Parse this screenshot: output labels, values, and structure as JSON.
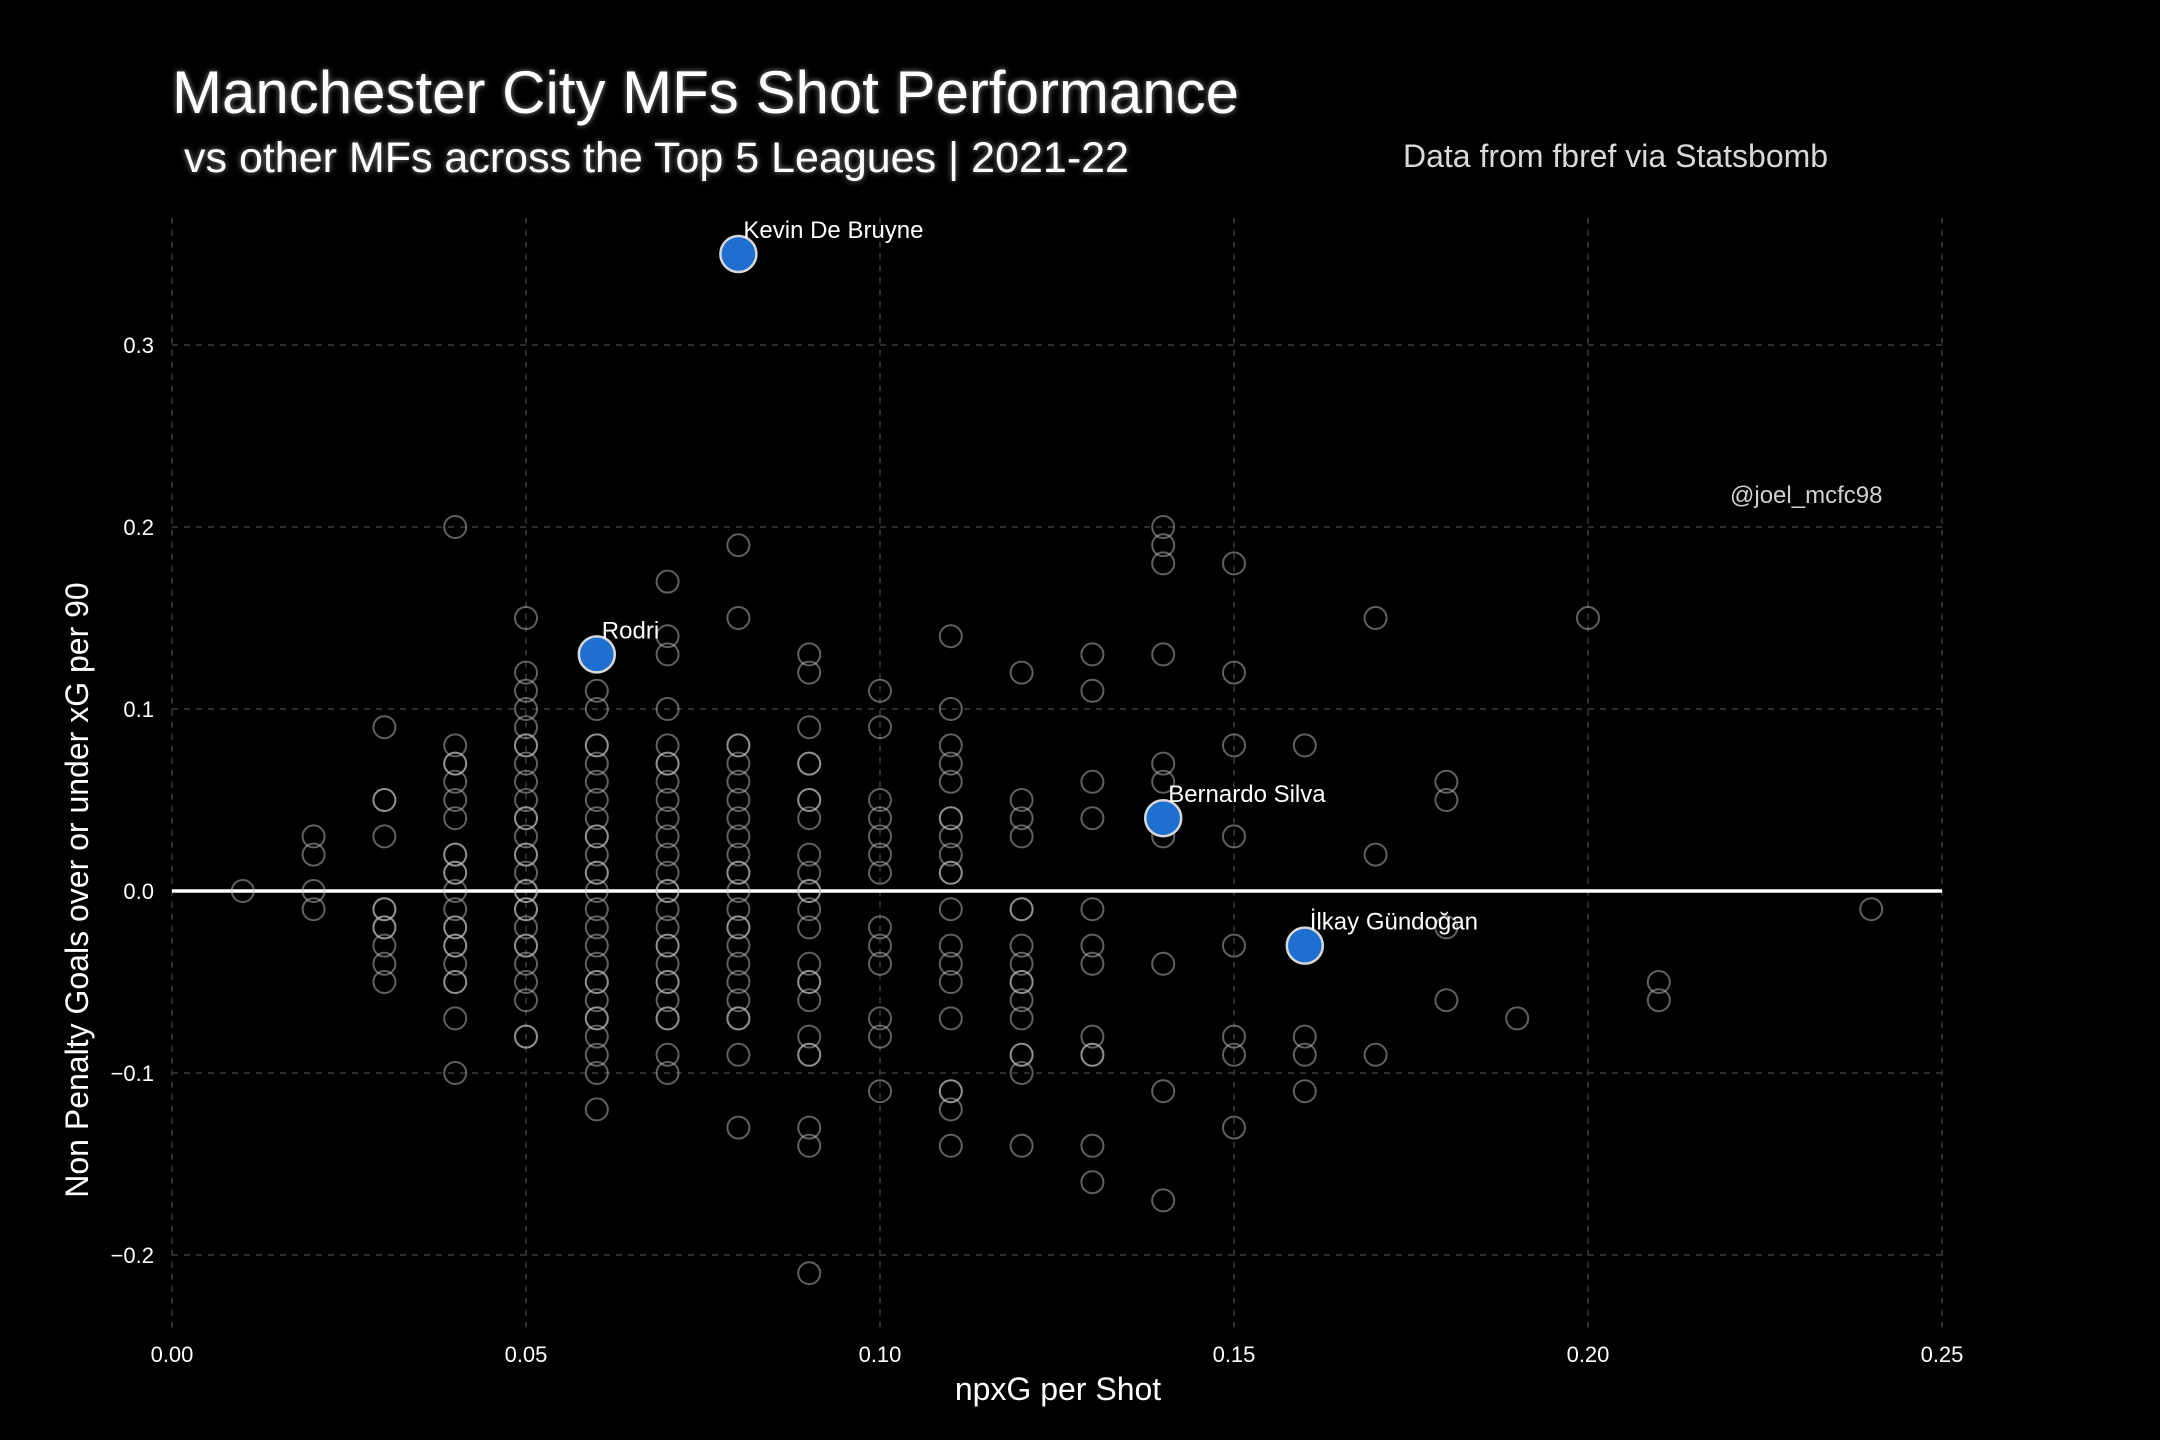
{
  "header": {
    "title": "Manchester City MFs Shot Performance",
    "subtitle": "vs other MFs across the Top 5 Leagues | 2021-22",
    "source": "Data from fbref via Statsbomb"
  },
  "watermark": "@joel_mcfc98",
  "colors": {
    "background": "#000000",
    "highlight": "#1f6fd1",
    "other_points_stroke": "#bfbfbf",
    "zero_line": "#ffffff",
    "grid": "#3a3a3a"
  },
  "chart_data": {
    "type": "scatter",
    "title": "Manchester City MFs Shot Performance",
    "subtitle": "vs other MFs across the Top 5 Leagues | 2021-22",
    "xlabel": "npxG per Shot",
    "ylabel": "Non Penalty Goals over or under xG per 90",
    "xlim": [
      0.0,
      0.25
    ],
    "ylim": [
      -0.24,
      0.37
    ],
    "x_ticks": [
      0.0,
      0.05,
      0.1,
      0.15,
      0.2,
      0.25
    ],
    "x_tick_labels": [
      "0.00",
      "0.05",
      "0.10",
      "0.15",
      "0.20",
      "0.25"
    ],
    "y_ticks": [
      -0.2,
      -0.1,
      0.0,
      0.1,
      0.2,
      0.3
    ],
    "y_tick_labels": [
      "−0.2",
      "−0.1",
      "0.0",
      "0.1",
      "0.2",
      "0.3"
    ],
    "grid": true,
    "reference_line_y": 0.0,
    "highlighted": [
      {
        "label": "Kevin De Bruyne",
        "x": 0.08,
        "y": 0.35
      },
      {
        "label": "Rodri",
        "x": 0.06,
        "y": 0.13
      },
      {
        "label": "Bernardo Silva",
        "x": 0.14,
        "y": 0.04
      },
      {
        "label": "İlkay Gündoğan",
        "x": 0.16,
        "y": -0.03
      }
    ],
    "others": [
      [
        0.01,
        0.0
      ],
      [
        0.02,
        0.03
      ],
      [
        0.02,
        0.02
      ],
      [
        0.02,
        0.0
      ],
      [
        0.02,
        -0.01
      ],
      [
        0.03,
        0.09
      ],
      [
        0.03,
        0.05
      ],
      [
        0.03,
        0.05
      ],
      [
        0.03,
        0.03
      ],
      [
        0.03,
        -0.01
      ],
      [
        0.03,
        -0.01
      ],
      [
        0.03,
        -0.02
      ],
      [
        0.03,
        -0.02
      ],
      [
        0.03,
        -0.03
      ],
      [
        0.03,
        -0.04
      ],
      [
        0.03,
        -0.05
      ],
      [
        0.04,
        0.2
      ],
      [
        0.04,
        0.08
      ],
      [
        0.04,
        0.07
      ],
      [
        0.04,
        0.07
      ],
      [
        0.04,
        0.06
      ],
      [
        0.04,
        0.05
      ],
      [
        0.04,
        0.04
      ],
      [
        0.04,
        0.02
      ],
      [
        0.04,
        0.02
      ],
      [
        0.04,
        0.01
      ],
      [
        0.04,
        0.01
      ],
      [
        0.04,
        0.0
      ],
      [
        0.04,
        -0.01
      ],
      [
        0.04,
        -0.02
      ],
      [
        0.04,
        -0.02
      ],
      [
        0.04,
        -0.03
      ],
      [
        0.04,
        -0.03
      ],
      [
        0.04,
        -0.04
      ],
      [
        0.04,
        -0.05
      ],
      [
        0.04,
        -0.05
      ],
      [
        0.04,
        -0.07
      ],
      [
        0.04,
        -0.1
      ],
      [
        0.05,
        0.15
      ],
      [
        0.05,
        0.12
      ],
      [
        0.05,
        0.11
      ],
      [
        0.05,
        0.1
      ],
      [
        0.05,
        0.09
      ],
      [
        0.05,
        0.08
      ],
      [
        0.05,
        0.08
      ],
      [
        0.05,
        0.07
      ],
      [
        0.05,
        0.06
      ],
      [
        0.05,
        0.05
      ],
      [
        0.05,
        0.04
      ],
      [
        0.05,
        0.04
      ],
      [
        0.05,
        0.03
      ],
      [
        0.05,
        0.02
      ],
      [
        0.05,
        0.02
      ],
      [
        0.05,
        0.01
      ],
      [
        0.05,
        0.0
      ],
      [
        0.05,
        0.0
      ],
      [
        0.05,
        -0.01
      ],
      [
        0.05,
        -0.01
      ],
      [
        0.05,
        -0.02
      ],
      [
        0.05,
        -0.03
      ],
      [
        0.05,
        -0.03
      ],
      [
        0.05,
        -0.04
      ],
      [
        0.05,
        -0.05
      ],
      [
        0.05,
        -0.06
      ],
      [
        0.05,
        -0.08
      ],
      [
        0.05,
        -0.08
      ],
      [
        0.06,
        0.11
      ],
      [
        0.06,
        0.1
      ],
      [
        0.06,
        0.08
      ],
      [
        0.06,
        0.08
      ],
      [
        0.06,
        0.07
      ],
      [
        0.06,
        0.06
      ],
      [
        0.06,
        0.05
      ],
      [
        0.06,
        0.04
      ],
      [
        0.06,
        0.03
      ],
      [
        0.06,
        0.03
      ],
      [
        0.06,
        0.02
      ],
      [
        0.06,
        0.01
      ],
      [
        0.06,
        0.01
      ],
      [
        0.06,
        0.0
      ],
      [
        0.06,
        -0.01
      ],
      [
        0.06,
        -0.02
      ],
      [
        0.06,
        -0.03
      ],
      [
        0.06,
        -0.04
      ],
      [
        0.06,
        -0.05
      ],
      [
        0.06,
        -0.05
      ],
      [
        0.06,
        -0.06
      ],
      [
        0.06,
        -0.07
      ],
      [
        0.06,
        -0.07
      ],
      [
        0.06,
        -0.08
      ],
      [
        0.06,
        -0.09
      ],
      [
        0.06,
        -0.1
      ],
      [
        0.06,
        -0.12
      ],
      [
        0.07,
        0.17
      ],
      [
        0.07,
        0.14
      ],
      [
        0.07,
        0.13
      ],
      [
        0.07,
        0.1
      ],
      [
        0.07,
        0.08
      ],
      [
        0.07,
        0.07
      ],
      [
        0.07,
        0.07
      ],
      [
        0.07,
        0.06
      ],
      [
        0.07,
        0.05
      ],
      [
        0.07,
        0.04
      ],
      [
        0.07,
        0.03
      ],
      [
        0.07,
        0.02
      ],
      [
        0.07,
        0.01
      ],
      [
        0.07,
        0.0
      ],
      [
        0.07,
        0.0
      ],
      [
        0.07,
        -0.01
      ],
      [
        0.07,
        -0.02
      ],
      [
        0.07,
        -0.03
      ],
      [
        0.07,
        -0.03
      ],
      [
        0.07,
        -0.04
      ],
      [
        0.07,
        -0.05
      ],
      [
        0.07,
        -0.05
      ],
      [
        0.07,
        -0.06
      ],
      [
        0.07,
        -0.07
      ],
      [
        0.07,
        -0.07
      ],
      [
        0.07,
        -0.09
      ],
      [
        0.07,
        -0.1
      ],
      [
        0.08,
        0.19
      ],
      [
        0.08,
        0.15
      ],
      [
        0.08,
        0.08
      ],
      [
        0.08,
        0.08
      ],
      [
        0.08,
        0.07
      ],
      [
        0.08,
        0.06
      ],
      [
        0.08,
        0.05
      ],
      [
        0.08,
        0.04
      ],
      [
        0.08,
        0.03
      ],
      [
        0.08,
        0.02
      ],
      [
        0.08,
        0.01
      ],
      [
        0.08,
        0.01
      ],
      [
        0.08,
        0.0
      ],
      [
        0.08,
        -0.01
      ],
      [
        0.08,
        -0.02
      ],
      [
        0.08,
        -0.02
      ],
      [
        0.08,
        -0.03
      ],
      [
        0.08,
        -0.04
      ],
      [
        0.08,
        -0.05
      ],
      [
        0.08,
        -0.06
      ],
      [
        0.08,
        -0.07
      ],
      [
        0.08,
        -0.07
      ],
      [
        0.08,
        -0.09
      ],
      [
        0.08,
        -0.13
      ],
      [
        0.09,
        0.13
      ],
      [
        0.09,
        0.12
      ],
      [
        0.09,
        0.09
      ],
      [
        0.09,
        0.07
      ],
      [
        0.09,
        0.07
      ],
      [
        0.09,
        0.05
      ],
      [
        0.09,
        0.05
      ],
      [
        0.09,
        0.04
      ],
      [
        0.09,
        0.02
      ],
      [
        0.09,
        0.01
      ],
      [
        0.09,
        0.0
      ],
      [
        0.09,
        0.0
      ],
      [
        0.09,
        -0.01
      ],
      [
        0.09,
        -0.02
      ],
      [
        0.09,
        -0.04
      ],
      [
        0.09,
        -0.05
      ],
      [
        0.09,
        -0.05
      ],
      [
        0.09,
        -0.06
      ],
      [
        0.09,
        -0.08
      ],
      [
        0.09,
        -0.09
      ],
      [
        0.09,
        -0.09
      ],
      [
        0.09,
        -0.13
      ],
      [
        0.09,
        -0.14
      ],
      [
        0.09,
        -0.21
      ],
      [
        0.1,
        0.11
      ],
      [
        0.1,
        0.09
      ],
      [
        0.1,
        0.05
      ],
      [
        0.1,
        0.04
      ],
      [
        0.1,
        0.03
      ],
      [
        0.1,
        0.02
      ],
      [
        0.1,
        0.01
      ],
      [
        0.1,
        -0.02
      ],
      [
        0.1,
        -0.03
      ],
      [
        0.1,
        -0.04
      ],
      [
        0.1,
        -0.07
      ],
      [
        0.1,
        -0.08
      ],
      [
        0.1,
        -0.11
      ],
      [
        0.11,
        0.14
      ],
      [
        0.11,
        0.1
      ],
      [
        0.11,
        0.08
      ],
      [
        0.11,
        0.07
      ],
      [
        0.11,
        0.06
      ],
      [
        0.11,
        0.04
      ],
      [
        0.11,
        0.04
      ],
      [
        0.11,
        0.03
      ],
      [
        0.11,
        0.02
      ],
      [
        0.11,
        0.01
      ],
      [
        0.11,
        0.01
      ],
      [
        0.11,
        -0.01
      ],
      [
        0.11,
        -0.03
      ],
      [
        0.11,
        -0.04
      ],
      [
        0.11,
        -0.05
      ],
      [
        0.11,
        -0.07
      ],
      [
        0.11,
        -0.11
      ],
      [
        0.11,
        -0.11
      ],
      [
        0.11,
        -0.12
      ],
      [
        0.11,
        -0.14
      ],
      [
        0.12,
        0.12
      ],
      [
        0.12,
        0.05
      ],
      [
        0.12,
        0.04
      ],
      [
        0.12,
        0.03
      ],
      [
        0.12,
        -0.01
      ],
      [
        0.12,
        -0.01
      ],
      [
        0.12,
        -0.03
      ],
      [
        0.12,
        -0.04
      ],
      [
        0.12,
        -0.05
      ],
      [
        0.12,
        -0.05
      ],
      [
        0.12,
        -0.06
      ],
      [
        0.12,
        -0.07
      ],
      [
        0.12,
        -0.09
      ],
      [
        0.12,
        -0.09
      ],
      [
        0.12,
        -0.1
      ],
      [
        0.12,
        -0.14
      ],
      [
        0.13,
        0.13
      ],
      [
        0.13,
        0.11
      ],
      [
        0.13,
        0.06
      ],
      [
        0.13,
        0.04
      ],
      [
        0.13,
        -0.01
      ],
      [
        0.13,
        -0.03
      ],
      [
        0.13,
        -0.04
      ],
      [
        0.13,
        -0.08
      ],
      [
        0.13,
        -0.09
      ],
      [
        0.13,
        -0.09
      ],
      [
        0.13,
        -0.14
      ],
      [
        0.13,
        -0.16
      ],
      [
        0.14,
        0.2
      ],
      [
        0.14,
        0.19
      ],
      [
        0.14,
        0.18
      ],
      [
        0.14,
        0.13
      ],
      [
        0.14,
        0.07
      ],
      [
        0.14,
        0.06
      ],
      [
        0.14,
        0.03
      ],
      [
        0.14,
        -0.04
      ],
      [
        0.14,
        -0.11
      ],
      [
        0.14,
        -0.17
      ],
      [
        0.15,
        0.18
      ],
      [
        0.15,
        0.12
      ],
      [
        0.15,
        0.08
      ],
      [
        0.15,
        0.03
      ],
      [
        0.15,
        -0.03
      ],
      [
        0.15,
        -0.08
      ],
      [
        0.15,
        -0.09
      ],
      [
        0.15,
        -0.13
      ],
      [
        0.16,
        0.08
      ],
      [
        0.16,
        -0.08
      ],
      [
        0.16,
        -0.09
      ],
      [
        0.16,
        -0.11
      ],
      [
        0.17,
        0.15
      ],
      [
        0.17,
        0.02
      ],
      [
        0.17,
        -0.09
      ],
      [
        0.18,
        0.06
      ],
      [
        0.18,
        0.05
      ],
      [
        0.18,
        -0.02
      ],
      [
        0.18,
        -0.06
      ],
      [
        0.19,
        -0.07
      ],
      [
        0.2,
        0.15
      ],
      [
        0.21,
        -0.05
      ],
      [
        0.21,
        -0.06
      ],
      [
        0.24,
        -0.01
      ]
    ]
  }
}
